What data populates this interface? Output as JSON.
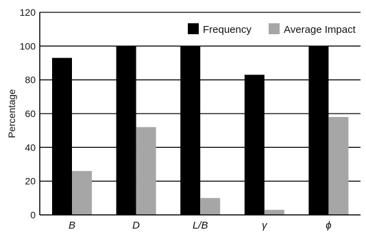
{
  "chart_data": {
    "type": "bar",
    "title": "",
    "xlabel": "",
    "ylabel": "Percentage",
    "ylim": [
      0,
      120
    ],
    "yticks": [
      "0",
      "20",
      "40",
      "60",
      "80",
      "100",
      "120"
    ],
    "categories": [
      "B",
      "D",
      "L/B",
      "γ",
      "ϕ"
    ],
    "series": [
      {
        "name": "Frequency",
        "color": "#000000",
        "values": [
          93,
          100,
          100,
          83,
          100
        ]
      },
      {
        "name": "Average Impact",
        "color": "#a6a6a6",
        "values": [
          26,
          52,
          10,
          3,
          58
        ]
      }
    ],
    "grid": true,
    "legend_position": "top-right"
  }
}
